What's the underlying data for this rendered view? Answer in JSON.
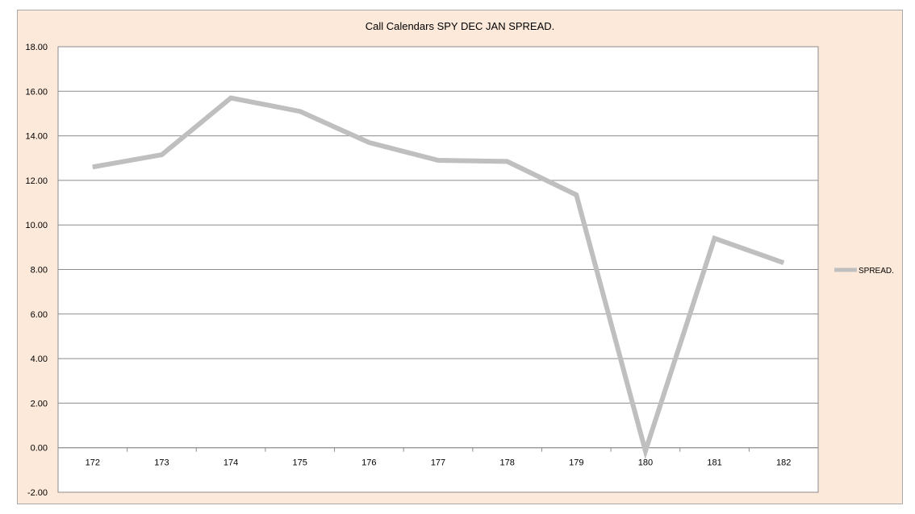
{
  "chart_data": {
    "type": "line",
    "title": "Call Calendars SPY DEC JAN SPREAD.",
    "xlabel": "",
    "ylabel": "",
    "categories": [
      "172",
      "173",
      "174",
      "175",
      "176",
      "177",
      "178",
      "179",
      "180",
      "181",
      "182"
    ],
    "series": [
      {
        "name": "SPREAD.",
        "color": "#bfbfbf",
        "values": [
          12.6,
          13.15,
          15.7,
          15.1,
          13.7,
          12.9,
          12.85,
          11.35,
          -0.15,
          9.4,
          8.3
        ]
      }
    ],
    "ylim": [
      -2,
      18
    ],
    "y_ticks": [
      "-2.00",
      "0.00",
      "2.00",
      "4.00",
      "6.00",
      "8.00",
      "10.00",
      "12.00",
      "14.00",
      "16.00",
      "18.00"
    ],
    "grid": true,
    "legend_position": "right",
    "background_color": "#fce9da",
    "plot_background_color": "#ffffff"
  }
}
